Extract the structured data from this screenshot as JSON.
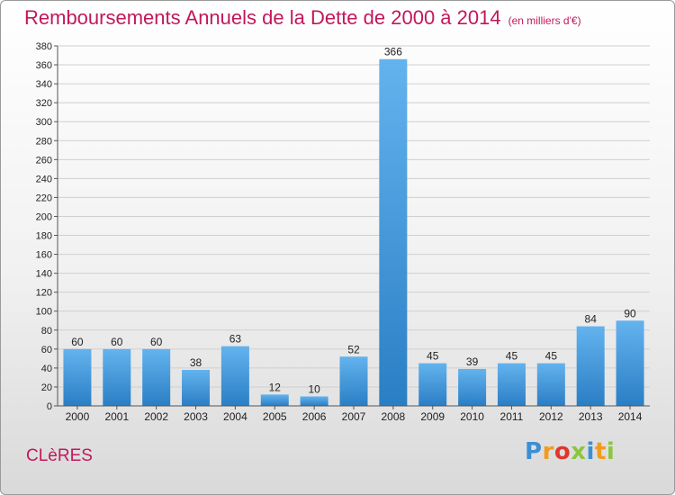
{
  "title": "Remboursements Annuels de la Dette de 2000 à 2014",
  "unit": "(en milliers d'€)",
  "city": "CLèRES",
  "logo": {
    "letters": [
      "P",
      "r",
      "o",
      "x",
      "i",
      "t",
      "i"
    ],
    "colors": [
      "#3b8fd4",
      "#f39a1e",
      "#e0362c",
      "#8cc63f",
      "#3b8fd4",
      "#f39a1e",
      "#8cc63f"
    ]
  },
  "colors": {
    "title": "#c2185b",
    "bar_top": "#63b3ee",
    "bar_bottom": "#2a7ec4"
  },
  "chart_data": {
    "type": "bar",
    "categories": [
      "2000",
      "2001",
      "2002",
      "2003",
      "2004",
      "2005",
      "2006",
      "2007",
      "2008",
      "2009",
      "2010",
      "2011",
      "2012",
      "2013",
      "2014"
    ],
    "values": [
      60,
      60,
      60,
      38,
      63,
      12,
      10,
      52,
      366,
      45,
      39,
      45,
      45,
      84,
      90
    ],
    "ylim": [
      0,
      380
    ],
    "yticks": [
      0,
      20,
      40,
      60,
      80,
      100,
      120,
      140,
      160,
      180,
      200,
      220,
      240,
      260,
      280,
      300,
      320,
      340,
      360,
      380
    ],
    "grid": true
  }
}
